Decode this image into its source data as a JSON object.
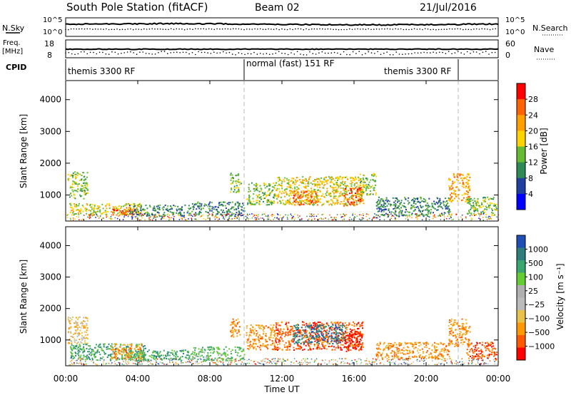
{
  "header": {
    "station": "South Pole Station (fitACF)",
    "beam": "Beam 02",
    "date": "21/Jul/2016"
  },
  "noise_panel": {
    "left_label": "N.Sky",
    "right_label": "N.Search",
    "ticks_left": [
      "10^5",
      "10^0"
    ],
    "ticks_right": [
      "10^5",
      "10^0"
    ]
  },
  "freq_panel": {
    "left_label_1": "Freq.",
    "left_label_2": "[MHz]",
    "right_label": "Nave",
    "ticks_left": [
      "18",
      "8"
    ],
    "ticks_right": [
      "60",
      "0"
    ]
  },
  "cpid_panel": {
    "label": "CPID",
    "segments": [
      "themis 3300 RF",
      "normal (fast) 151 RF",
      "themis 3300 RF"
    ]
  },
  "x_axis": {
    "label": "Time UT",
    "ticks": [
      "00:00",
      "04:00",
      "08:00",
      "12:00",
      "16:00",
      "20:00",
      "00:00"
    ]
  },
  "colors": {
    "power": [
      "#0000ff",
      "#2040a0",
      "#2e8b57",
      "#66bb33",
      "#ffd200",
      "#ffa000",
      "#ff6400",
      "#ff0000"
    ],
    "velocity": [
      "#ff0000",
      "#ff5a00",
      "#ff9900",
      "#e8c24a",
      "#bbbbbb",
      "#b0b0b0",
      "#66cc33",
      "#3aa66f",
      "#2e7d7d",
      "#1f4fb5"
    ]
  },
  "chart_data": [
    {
      "type": "heatmap",
      "title": "",
      "xlabel": "Time UT",
      "ylabel": "Slant Range [km]",
      "xlim": [
        "00:00",
        "24:00"
      ],
      "ylim": [
        180,
        4600
      ],
      "yticks": [
        "1000",
        "2000",
        "3000",
        "4000"
      ],
      "colorbar": {
        "label": "Power [dB]",
        "ticks": [
          "4",
          "8",
          "12",
          "16",
          "20",
          "24",
          "28"
        ],
        "range": [
          0,
          32
        ]
      },
      "echo_regions": [
        {
          "t0": 0.1,
          "t1": 1.2,
          "r0": 900,
          "r1": 1750,
          "level": 12
        },
        {
          "t0": 0.2,
          "t1": 4.4,
          "r0": 380,
          "r1": 750,
          "level": 16
        },
        {
          "t0": 2.5,
          "t1": 3.9,
          "r0": 380,
          "r1": 620,
          "level": 26
        },
        {
          "t0": 3.5,
          "t1": 7.0,
          "r0": 350,
          "r1": 700,
          "level": 8
        },
        {
          "t0": 7.0,
          "t1": 9.9,
          "r0": 350,
          "r1": 800,
          "level": 9
        },
        {
          "t0": 9.1,
          "t1": 9.7,
          "r0": 1100,
          "r1": 1700,
          "level": 14
        },
        {
          "t0": 10.0,
          "t1": 11.6,
          "r0": 700,
          "r1": 1400,
          "level": 14
        },
        {
          "t0": 11.6,
          "t1": 16.5,
          "r0": 700,
          "r1": 1600,
          "level": 18
        },
        {
          "t0": 12.6,
          "t1": 14.0,
          "r0": 700,
          "r1": 1150,
          "level": 26
        },
        {
          "t0": 15.4,
          "t1": 16.4,
          "r0": 650,
          "r1": 1250,
          "level": 27
        },
        {
          "t0": 16.3,
          "t1": 17.2,
          "r0": 1000,
          "r1": 1700,
          "level": 12
        },
        {
          "t0": 17.2,
          "t1": 21.3,
          "r0": 350,
          "r1": 950,
          "level": 8
        },
        {
          "t0": 21.2,
          "t1": 22.4,
          "r0": 800,
          "r1": 1700,
          "level": 20
        },
        {
          "t0": 22.2,
          "t1": 23.9,
          "r0": 380,
          "r1": 950,
          "level": 14
        }
      ]
    },
    {
      "type": "heatmap",
      "title": "",
      "xlabel": "Time UT",
      "ylabel": "Slant Range [km]",
      "xlim": [
        "00:00",
        "24:00"
      ],
      "ylim": [
        180,
        4600
      ],
      "yticks": [
        "1000",
        "2000",
        "3000",
        "4000"
      ],
      "colorbar": {
        "label": "Velocity [m s⁻¹]",
        "ticks": [
          "1000",
          "500",
          "100",
          "25",
          "−25",
          "−100",
          "−500",
          "−1000"
        ]
      },
      "echo_regions": [
        {
          "t0": 0.1,
          "t1": 1.2,
          "r0": 900,
          "r1": 1750,
          "level": 3
        },
        {
          "t0": 0.2,
          "t1": 4.4,
          "r0": 380,
          "r1": 900,
          "level": 7
        },
        {
          "t0": 2.5,
          "t1": 4.3,
          "r0": 400,
          "r1": 900,
          "level": 2
        },
        {
          "t0": 3.5,
          "t1": 7.0,
          "r0": 350,
          "r1": 700,
          "level": 7
        },
        {
          "t0": 7.0,
          "t1": 9.9,
          "r0": 350,
          "r1": 800,
          "level": 6
        },
        {
          "t0": 9.1,
          "t1": 9.7,
          "r0": 1100,
          "r1": 1700,
          "level": 2
        },
        {
          "t0": 10.0,
          "t1": 11.6,
          "r0": 700,
          "r1": 1500,
          "level": 2
        },
        {
          "t0": 11.6,
          "t1": 16.5,
          "r0": 700,
          "r1": 1600,
          "level": 1
        },
        {
          "t0": 12.6,
          "t1": 15.5,
          "r0": 900,
          "r1": 1500,
          "level": 8
        },
        {
          "t0": 15.4,
          "t1": 16.4,
          "r0": 650,
          "r1": 1300,
          "level": 0
        },
        {
          "t0": 17.2,
          "t1": 21.3,
          "r0": 400,
          "r1": 950,
          "level": 2
        },
        {
          "t0": 21.2,
          "t1": 22.4,
          "r0": 800,
          "r1": 1700,
          "level": 2
        },
        {
          "t0": 22.2,
          "t1": 23.9,
          "r0": 380,
          "r1": 950,
          "level": 1
        }
      ]
    }
  ]
}
